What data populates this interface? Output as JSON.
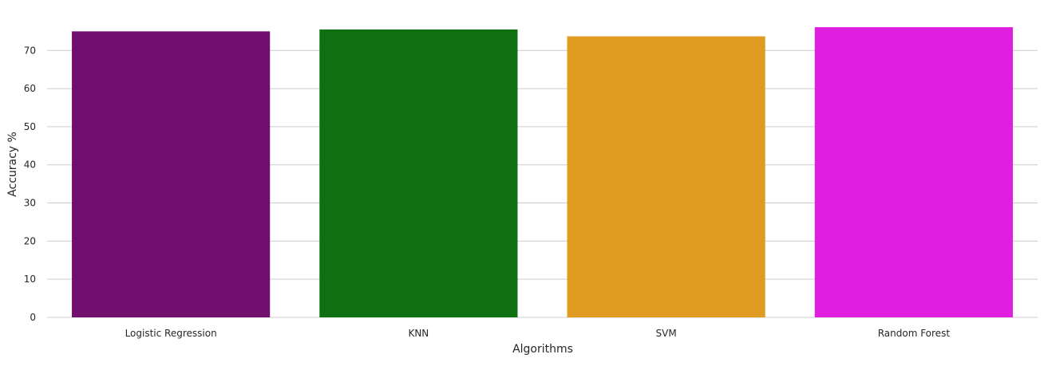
{
  "chart_data": {
    "type": "bar",
    "title": "",
    "xlabel": "Algorithms",
    "ylabel": "Accuracy %",
    "categories": [
      "Logistic Regression",
      "KNN",
      "SVM",
      "Random Forest"
    ],
    "values": [
      75.0,
      75.5,
      73.7,
      76.1
    ],
    "colors": [
      "#720e6e",
      "#0f7012",
      "#e09c21",
      "#df1edf"
    ],
    "ylim": [
      0,
      78
    ],
    "yticks": [
      0,
      10,
      20,
      30,
      40,
      50,
      60,
      70
    ],
    "grid": true,
    "grid_axis": "y",
    "legend": "none"
  }
}
